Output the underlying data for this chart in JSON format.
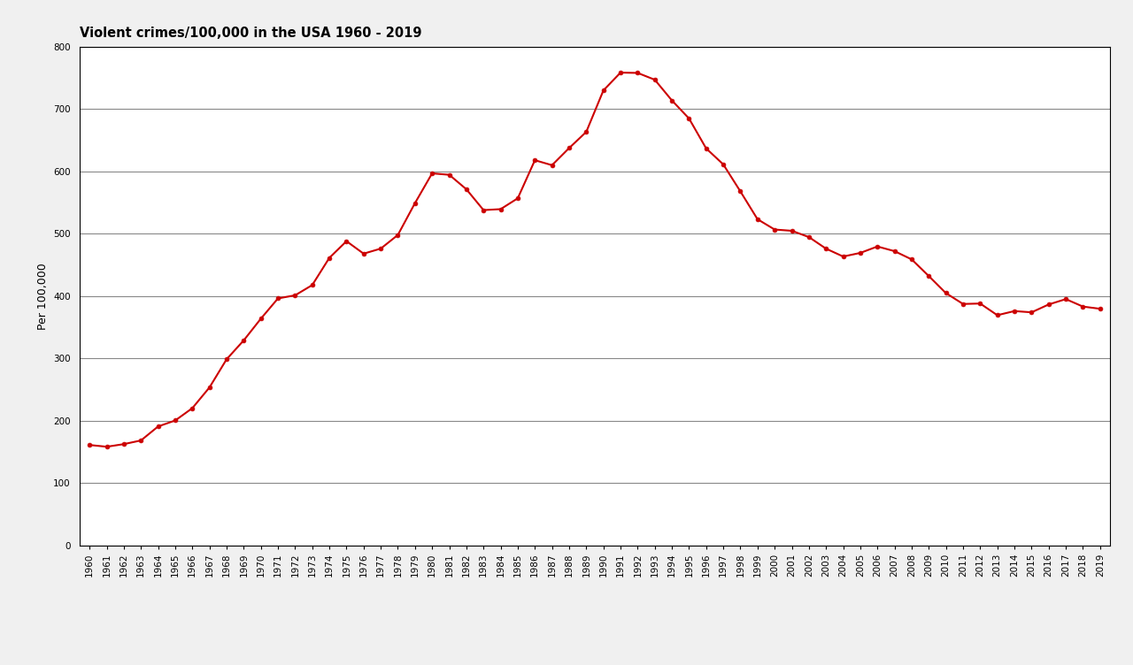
{
  "title": "Violent crimes/100,000 in the USA 1960 - 2019",
  "ylabel": "Per 100,000",
  "years": [
    1960,
    1961,
    1962,
    1963,
    1964,
    1965,
    1966,
    1967,
    1968,
    1969,
    1970,
    1971,
    1972,
    1973,
    1974,
    1975,
    1976,
    1977,
    1978,
    1979,
    1980,
    1981,
    1982,
    1983,
    1984,
    1985,
    1986,
    1987,
    1988,
    1989,
    1990,
    1991,
    1992,
    1993,
    1994,
    1995,
    1996,
    1997,
    1998,
    1999,
    2000,
    2001,
    2002,
    2003,
    2004,
    2005,
    2006,
    2007,
    2008,
    2009,
    2010,
    2011,
    2012,
    2013,
    2014,
    2015,
    2016,
    2017,
    2018,
    2019
  ],
  "values": [
    160.9,
    158.1,
    162.3,
    168.2,
    190.6,
    200.2,
    220.0,
    253.2,
    298.4,
    328.7,
    363.5,
    396.0,
    401.0,
    417.4,
    461.1,
    487.8,
    467.8,
    475.9,
    497.8,
    548.9,
    596.6,
    594.3,
    571.1,
    537.7,
    539.2,
    556.6,
    617.7,
    609.7,
    637.2,
    663.1,
    729.6,
    758.2,
    757.7,
    746.8,
    713.6,
    684.6,
    636.6,
    611.0,
    567.6,
    523.0,
    506.5,
    504.5,
    494.4,
    475.8,
    463.2,
    469.0,
    479.3,
    471.8,
    458.6,
    431.9,
    404.5,
    387.1,
    387.8,
    369.1,
    375.7,
    373.7,
    386.3,
    394.9,
    382.9,
    379.4
  ],
  "line_color": "#cc0000",
  "marker_color": "#cc0000",
  "marker_size": 3.5,
  "line_width": 1.5,
  "ylim": [
    0,
    800
  ],
  "yticks": [
    0,
    100,
    200,
    300,
    400,
    500,
    600,
    700,
    800
  ],
  "grid_color": "#888888",
  "background_color": "#f0f0f0",
  "plot_bg_color": "#ffffff",
  "title_fontsize": 10.5,
  "axis_label_fontsize": 9,
  "tick_fontsize": 7.5,
  "spine_color": "#000000"
}
